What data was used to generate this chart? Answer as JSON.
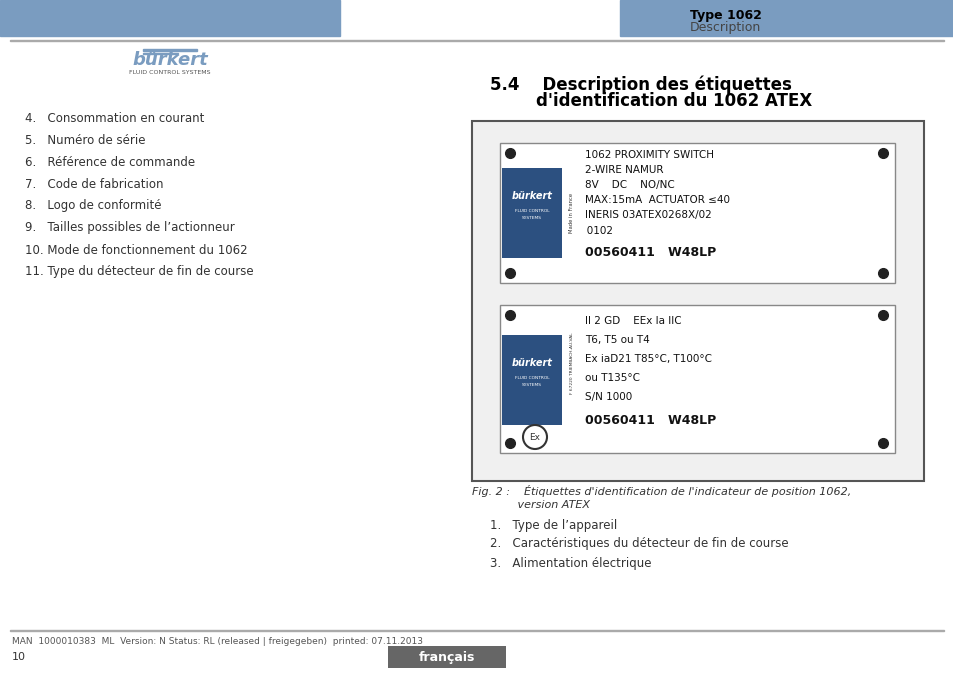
{
  "header_bg_color": "#7a9cc0",
  "page_bg": "#ffffff",
  "header_right_bold": "Type 1062",
  "header_right_normal": "Description",
  "burkert_color": "#7a9cc0",
  "left_items": [
    "4.   Consommation en courant",
    "5.   Numéro de série",
    "6.   Référence de commande",
    "7.   Code de fabrication",
    "8.   Logo de conformité",
    "9.   Tailles possibles de l’actionneur",
    "10. Mode de fonctionnement du 1062",
    "11. Type du détecteur de fin de course"
  ],
  "label1_lines": [
    "1062 PROXIMITY SWITCH",
    "2-WIRE NAMUR",
    "8V    DC    NO/NC",
    "MAX:15mA  ACTUATOR ≤40",
    "INERIS 03ATEX0268X/02",
    " 0102",
    "00560411   W48LP"
  ],
  "label2_lines": [
    "II 2 GD    EEx Ia IIC",
    "T6, T5 ou T4",
    "Ex iaD21 T85°C, T100°C",
    "ou T135°C",
    "S/N 1000",
    "00560411   W48LP"
  ],
  "bottom_items": [
    "1.   Type de l’appareil",
    "2.   Caractéristiques du détecteur de fin de course",
    "3.   Alimentation électrique"
  ],
  "footer_text": "MAN  1000010383  ML  Version: N Status: RL (released | freigegeben)  printed: 07.11.2013",
  "footer_page": "10",
  "footer_lang": "français",
  "footer_lang_bg": "#666666",
  "footer_lang_fg": "#ffffff"
}
